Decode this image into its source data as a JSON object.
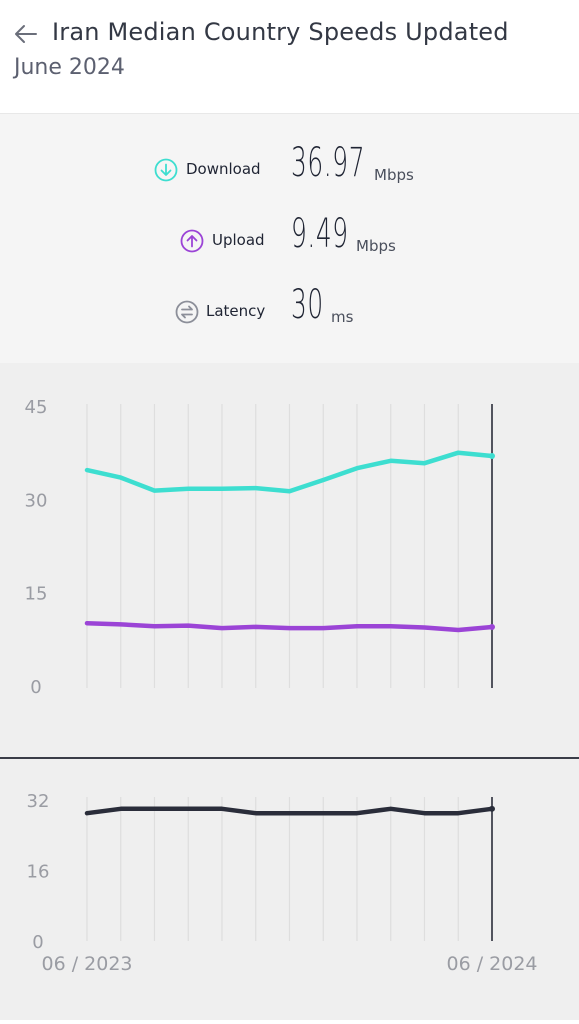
{
  "header": {
    "title": "Iran Median Country Speeds Updated",
    "subtitle": "June 2024",
    "back_icon": "back-arrow-icon"
  },
  "stats": {
    "download": {
      "label": "Download",
      "value": "36.97",
      "unit": "Mbps",
      "icon": "download-icon",
      "color": "#3dded0"
    },
    "upload": {
      "label": "Upload",
      "value": "9.49",
      "unit": "Mbps",
      "icon": "upload-icon",
      "color": "#9b44d6"
    },
    "latency": {
      "label": "Latency",
      "value": "30",
      "unit": "ms",
      "icon": "latency-icon",
      "color": "#8c8f99"
    }
  },
  "chart_data": [
    {
      "type": "line",
      "x": [
        "2023-06",
        "2023-07",
        "2023-08",
        "2023-09",
        "2023-10",
        "2023-11",
        "2023-12",
        "2024-01",
        "2024-02",
        "2024-03",
        "2024-04",
        "2024-05",
        "2024-06"
      ],
      "series": [
        {
          "color": "#3dded0",
          "values": [
            34.7,
            33.5,
            31.4,
            31.7,
            31.7,
            31.8,
            31.3,
            33.1,
            35.0,
            36.2,
            35.8,
            37.5,
            36.97
          ]
        },
        {
          "color": "#9b44d6",
          "values": [
            10.1,
            9.9,
            9.6,
            9.7,
            9.3,
            9.5,
            9.3,
            9.3,
            9.6,
            9.6,
            9.4,
            9.0,
            9.49
          ]
        }
      ],
      "yticks": [
        "45",
        "30",
        "15",
        "0"
      ],
      "ylim": [
        0,
        45
      ],
      "grid": "vertical"
    },
    {
      "type": "line",
      "x": [
        "2023-06",
        "2023-07",
        "2023-08",
        "2023-09",
        "2023-10",
        "2023-11",
        "2023-12",
        "2024-01",
        "2024-02",
        "2024-03",
        "2024-04",
        "2024-05",
        "2024-06"
      ],
      "series": [
        {
          "color": "#2a2d3a",
          "values": [
            29,
            30,
            30,
            30,
            30,
            29,
            29,
            29,
            29,
            30,
            29,
            29,
            30
          ]
        }
      ],
      "yticks": [
        "32",
        "16",
        "0"
      ],
      "ylim": [
        0,
        32
      ],
      "grid": "vertical",
      "x_start_label": "06 / 2023",
      "x_end_label": "06 / 2024"
    }
  ]
}
